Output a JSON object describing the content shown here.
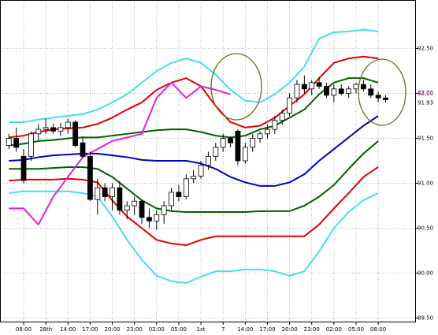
{
  "chart_data": {
    "type": "candlestick",
    "xlim": [
      -3.2,
      53
    ],
    "ylim": [
      89.46,
      93.04
    ],
    "xticks": [
      {
        "value": 0,
        "label": "08:00"
      },
      {
        "value": 3,
        "label": "28th"
      },
      {
        "value": 6,
        "label": "14:00"
      },
      {
        "value": 9,
        "label": "17:00"
      },
      {
        "value": 12,
        "label": "20:00"
      },
      {
        "value": 15,
        "label": "23:00"
      },
      {
        "value": 18,
        "label": "02:00"
      },
      {
        "value": 21,
        "label": "05:00"
      },
      {
        "value": 24,
        "label": "1st"
      },
      {
        "value": 27,
        "label": "7"
      },
      {
        "value": 30,
        "label": "14:00"
      },
      {
        "value": 33,
        "label": "17:00"
      },
      {
        "value": 36,
        "label": "20:00"
      },
      {
        "value": 39,
        "label": "23:00"
      },
      {
        "value": 42,
        "label": "02:00"
      },
      {
        "value": 45,
        "label": "05:00"
      },
      {
        "value": 48,
        "label": "08:00"
      }
    ],
    "yticks": [
      {
        "value": 92.5,
        "label": "92.50"
      },
      {
        "value": 92.0,
        "label": "92.00"
      },
      {
        "value": 91.5,
        "label": "91.50"
      },
      {
        "value": 91.0,
        "label": "91.00"
      },
      {
        "value": 90.5,
        "label": "90.50"
      },
      {
        "value": 90.0,
        "label": "90.00"
      },
      {
        "value": 89.5,
        "label": "89.50"
      }
    ],
    "grid": true,
    "price_markers": [
      {
        "value": 92.0,
        "label": "92.00",
        "color": "#d040d0"
      },
      {
        "value": 91.93,
        "label": "91.93",
        "color": "#000000"
      }
    ],
    "candles": {
      "x": [
        -2,
        -1,
        0,
        1,
        2,
        3,
        4,
        5,
        6,
        7,
        8,
        9,
        10,
        11,
        12,
        13,
        14,
        15,
        16,
        17,
        18,
        19,
        20,
        21,
        22,
        23,
        24,
        25,
        26,
        27,
        28,
        29,
        30,
        31,
        32,
        33,
        34,
        35,
        36,
        37,
        38,
        39,
        40,
        41,
        42,
        43,
        44,
        45,
        46,
        47,
        48,
        49
      ],
      "open": [
        91.42,
        91.5,
        91.3,
        91.3,
        91.55,
        91.6,
        91.62,
        91.58,
        91.62,
        91.68,
        91.45,
        91.3,
        90.82,
        90.95,
        90.85,
        90.95,
        90.7,
        90.75,
        90.8,
        90.62,
        90.58,
        90.65,
        90.75,
        90.9,
        90.85,
        91.05,
        91.08,
        91.2,
        91.3,
        91.4,
        91.5,
        91.58,
        91.25,
        91.4,
        91.5,
        91.55,
        91.6,
        91.7,
        91.78,
        91.95,
        92.1,
        92.05,
        92.12,
        92.08,
        91.98,
        92.05,
        92.0,
        92.05,
        92.1,
        92.05,
        91.98,
        91.95
      ],
      "high": [
        91.55,
        91.62,
        91.38,
        91.58,
        91.66,
        91.72,
        91.66,
        91.67,
        91.72,
        91.7,
        91.52,
        91.35,
        91.05,
        91.0,
        91.0,
        91.02,
        90.8,
        90.85,
        90.82,
        90.72,
        90.7,
        90.8,
        90.95,
        90.98,
        91.1,
        91.15,
        91.25,
        91.35,
        91.45,
        91.55,
        91.52,
        91.6,
        91.45,
        91.55,
        91.58,
        91.65,
        91.75,
        91.82,
        92.0,
        92.15,
        92.2,
        92.15,
        92.18,
        92.12,
        92.1,
        92.1,
        92.08,
        92.12,
        92.15,
        92.1,
        92.02,
        91.98
      ],
      "low": [
        91.38,
        91.35,
        91.0,
        91.25,
        91.48,
        91.55,
        91.55,
        91.52,
        91.55,
        91.4,
        91.28,
        90.8,
        90.65,
        90.8,
        90.7,
        90.65,
        90.6,
        90.65,
        90.55,
        90.5,
        90.48,
        90.55,
        90.7,
        90.8,
        90.82,
        91.0,
        91.05,
        91.15,
        91.25,
        91.35,
        91.4,
        91.2,
        91.22,
        91.35,
        91.45,
        91.5,
        91.55,
        91.65,
        91.75,
        91.9,
        92.0,
        91.98,
        92.05,
        91.95,
        91.9,
        91.98,
        91.95,
        92.0,
        92.02,
        91.95,
        91.9,
        91.9
      ],
      "close": [
        91.5,
        91.4,
        91.03,
        91.55,
        91.6,
        91.62,
        91.58,
        91.62,
        91.68,
        91.42,
        91.3,
        90.82,
        90.95,
        90.85,
        90.95,
        90.7,
        90.75,
        90.8,
        90.62,
        90.58,
        90.65,
        90.75,
        90.9,
        90.85,
        91.05,
        91.08,
        91.2,
        91.3,
        91.4,
        91.5,
        91.45,
        91.25,
        91.4,
        91.5,
        91.55,
        91.6,
        91.7,
        91.78,
        91.95,
        92.1,
        92.05,
        92.12,
        92.08,
        91.98,
        92.05,
        92.0,
        92.05,
        92.1,
        92.05,
        91.98,
        91.95,
        91.93
      ]
    },
    "series": [
      {
        "color": "#40e0f0",
        "x": [
          -2,
          0,
          2,
          4,
          6,
          8,
          10,
          12,
          14,
          16,
          18,
          20,
          22,
          24,
          26,
          28,
          30,
          32,
          34,
          36,
          38,
          40,
          42,
          44,
          46,
          48
        ],
        "values": [
          91.68,
          91.68,
          91.71,
          91.73,
          91.75,
          91.77,
          91.82,
          91.9,
          91.99,
          92.12,
          92.25,
          92.34,
          92.39,
          92.34,
          92.21,
          92.04,
          91.92,
          91.9,
          91.99,
          92.12,
          92.3,
          92.61,
          92.68,
          92.69,
          92.71,
          92.69
        ]
      },
      {
        "color": "#e00000",
        "x": [
          -2,
          0,
          2,
          4,
          6,
          8,
          10,
          12,
          14,
          16,
          18,
          20,
          22,
          24,
          26,
          28,
          30,
          32,
          34,
          36,
          38,
          40,
          42,
          44,
          46,
          48
        ],
        "values": [
          91.51,
          91.53,
          91.57,
          91.6,
          91.61,
          91.62,
          91.66,
          91.73,
          91.82,
          91.9,
          92.04,
          92.12,
          92.17,
          92.08,
          91.86,
          91.68,
          91.62,
          91.64,
          91.73,
          91.86,
          91.99,
          92.17,
          92.34,
          92.39,
          92.41,
          92.39
        ]
      },
      {
        "color": "#006000",
        "x": [
          -2,
          0,
          2,
          4,
          6,
          8,
          10,
          12,
          14,
          16,
          18,
          20,
          22,
          24,
          26,
          28,
          30,
          32,
          34,
          36,
          38,
          40,
          42,
          44,
          46,
          48
        ],
        "values": [
          91.42,
          91.44,
          91.47,
          91.48,
          91.5,
          91.51,
          91.51,
          91.53,
          91.55,
          91.57,
          91.59,
          91.6,
          91.6,
          91.57,
          91.53,
          91.51,
          91.53,
          91.6,
          91.64,
          91.73,
          91.82,
          91.99,
          92.12,
          92.17,
          92.17,
          92.12
        ]
      },
      {
        "color": "#0000c0",
        "x": [
          -2,
          0,
          2,
          4,
          6,
          8,
          10,
          12,
          14,
          16,
          18,
          20,
          22,
          24,
          26,
          28,
          30,
          32,
          34,
          36,
          38,
          40,
          42,
          44,
          46,
          48
        ],
        "values": [
          91.25,
          91.26,
          91.29,
          91.31,
          91.32,
          91.33,
          91.33,
          91.31,
          91.29,
          91.26,
          91.25,
          91.25,
          91.25,
          91.22,
          91.16,
          91.07,
          91.01,
          90.97,
          90.97,
          91.01,
          91.1,
          91.25,
          91.38,
          91.51,
          91.64,
          91.75
        ]
      },
      {
        "color": "#006000",
        "x": [
          -2,
          0,
          2,
          4,
          6,
          8,
          10,
          12,
          14,
          16,
          18,
          20,
          22,
          24,
          26,
          28,
          30,
          32,
          34,
          36,
          38,
          40,
          42,
          44,
          46,
          48
        ],
        "values": [
          91.16,
          91.16,
          91.16,
          91.17,
          91.18,
          91.18,
          91.16,
          91.07,
          90.94,
          90.81,
          90.72,
          90.69,
          90.68,
          90.68,
          90.68,
          90.68,
          90.68,
          90.69,
          90.69,
          90.69,
          90.75,
          90.85,
          90.98,
          91.16,
          91.33,
          91.47
        ]
      },
      {
        "color": "#e00000",
        "x": [
          -2,
          0,
          2,
          4,
          6,
          8,
          10,
          12,
          14,
          16,
          18,
          20,
          22,
          24,
          26,
          28,
          30,
          32,
          34,
          36,
          38,
          40,
          42,
          44,
          46,
          48
        ],
        "values": [
          91.03,
          91.04,
          91.04,
          91.04,
          91.05,
          91.04,
          91.01,
          90.81,
          90.63,
          90.5,
          90.37,
          90.33,
          90.31,
          90.37,
          90.41,
          90.41,
          90.41,
          90.41,
          90.41,
          90.41,
          90.41,
          90.54,
          90.72,
          90.89,
          91.07,
          91.18
        ]
      },
      {
        "color": "#40e0f0",
        "x": [
          -2,
          0,
          2,
          4,
          6,
          8,
          10,
          12,
          14,
          16,
          18,
          20,
          22,
          24,
          26,
          28,
          30,
          32,
          34,
          36,
          38,
          40,
          42,
          44,
          46,
          48
        ],
        "values": [
          90.89,
          90.91,
          90.91,
          90.91,
          90.91,
          90.89,
          90.85,
          90.63,
          90.37,
          90.15,
          89.97,
          89.91,
          89.89,
          89.96,
          90.02,
          90.02,
          90.04,
          90.04,
          90.02,
          89.97,
          90.02,
          90.24,
          90.5,
          90.68,
          90.81,
          90.89
        ]
      },
      {
        "color": "#e020e0",
        "x": [
          -2,
          0,
          2,
          4,
          6,
          8,
          10,
          12,
          14,
          16,
          18,
          20,
          22,
          24,
          26,
          28
        ],
        "values": [
          90.72,
          90.72,
          90.54,
          90.85,
          91.07,
          91.29,
          91.38,
          91.47,
          91.51,
          91.55,
          91.95,
          92.12,
          91.95,
          92.08,
          92.04,
          91.99
        ]
      }
    ]
  }
}
